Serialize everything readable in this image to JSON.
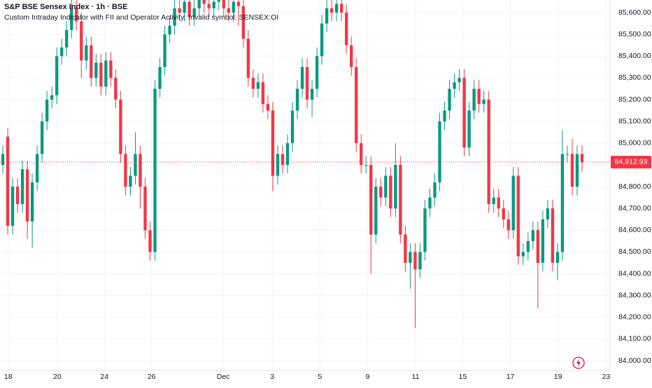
{
  "chart_data": {
    "type": "candlestick",
    "title": "S&P BSE Sensex Index · 1h · BSE",
    "subtitle": "Custom Intraday Indicator with FII and Operator Activity: Invalid symbol: SENSEX:OI",
    "up_color": "#089981",
    "down_color": "#f23645",
    "grid": true,
    "last_price_label": "84,912.93",
    "xlim": [
      -0.57,
      123.7
    ],
    "xticks": [
      {
        "value": 1.1,
        "label": "18"
      },
      {
        "value": 11.1,
        "label": "20"
      },
      {
        "value": 20.7,
        "label": "24"
      },
      {
        "value": 30.3,
        "label": "26"
      },
      {
        "value": 44.9,
        "label": "Dec"
      },
      {
        "value": 54.9,
        "label": "3"
      },
      {
        "value": 64.6,
        "label": "5"
      },
      {
        "value": 74.3,
        "label": "9"
      },
      {
        "value": 84.1,
        "label": "11"
      },
      {
        "value": 93.7,
        "label": "15"
      },
      {
        "value": 103.4,
        "label": "17"
      },
      {
        "value": 113.1,
        "label": "19"
      },
      {
        "value": 122.9,
        "label": "23"
      }
    ],
    "ylim": [
      83955,
      85658
    ],
    "yticks": [
      {
        "value": 84000,
        "label": "84,000.00"
      },
      {
        "value": 84100,
        "label": "84,100.00"
      },
      {
        "value": 84200,
        "label": "84,200.00"
      },
      {
        "value": 84300,
        "label": "84,300.00"
      },
      {
        "value": 84400,
        "label": "84,400.00"
      },
      {
        "value": 84500,
        "label": "84,500.00"
      },
      {
        "value": 84600,
        "label": "84,600.00"
      },
      {
        "value": 84700,
        "label": "84,700.00"
      },
      {
        "value": 84800,
        "label": "84,800.00"
      },
      {
        "value": 84900,
        "label": "84,900.00"
      },
      {
        "value": 85000,
        "label": "85,000.00"
      },
      {
        "value": 85100,
        "label": "85,100.00"
      },
      {
        "value": 85200,
        "label": "85,200.00"
      },
      {
        "value": 85300,
        "label": "85,300.00"
      },
      {
        "value": 85400,
        "label": "85,400.00"
      },
      {
        "value": 85500,
        "label": "85,500.00"
      },
      {
        "value": 85600,
        "label": "85,600.00"
      }
    ],
    "open": [
      84900,
      85030,
      84620,
      84800,
      84720,
      84880,
      84640,
      84820,
      84950,
      85100,
      85200,
      85220,
      85400,
      85440,
      85520,
      85620,
      85560,
      85380,
      85450,
      85300,
      85370,
      85260,
      85380,
      85300,
      85200,
      84950,
      84800,
      84850,
      84950,
      84800,
      84600,
      84500,
      85250,
      85350,
      85500,
      85540,
      85620,
      85600,
      85650,
      85580,
      85620,
      85660,
      85640,
      85620,
      85650,
      85660,
      85620,
      85600,
      85650,
      85630,
      85480,
      85300,
      85250,
      85280,
      85180,
      85150,
      84850,
      84950,
      84900,
      85000,
      85150,
      85250,
      85350,
      85200,
      85250,
      85400,
      85550,
      85620,
      85600,
      85640,
      85600,
      85450,
      85350,
      85000,
      84900,
      84900,
      84580,
      84800,
      84750,
      84850,
      84700,
      84900,
      84580,
      84450,
      84500,
      84420,
      84500,
      84700,
      84750,
      84820,
      85100,
      85150,
      85250,
      85280,
      85300,
      84980,
      85150,
      85250,
      85180,
      85200,
      84720,
      84750,
      84700,
      84650,
      84600,
      84850,
      84480,
      84500,
      84550,
      84600,
      84450,
      84650,
      84700,
      84450,
      84500,
      84950,
      84950,
      84800,
      84950
    ],
    "high": [
      84990,
      85070,
      84840,
      84840,
      84920,
      84920,
      84860,
      84990,
      85140,
      85240,
      85260,
      85440,
      85480,
      85560,
      85660,
      85660,
      85600,
      85490,
      85490,
      85410,
      85410,
      85420,
      85420,
      85340,
      85240,
      84990,
      84890,
      85050,
      84990,
      84840,
      84640,
      85290,
      85390,
      85540,
      85580,
      85660,
      85660,
      85690,
      85690,
      85660,
      85700,
      85700,
      85680,
      85690,
      85700,
      85700,
      85660,
      85690,
      85690,
      85670,
      85520,
      85340,
      85320,
      85320,
      85220,
      85190,
      84990,
      84990,
      85040,
      85190,
      85290,
      85390,
      85390,
      85290,
      85440,
      85590,
      85660,
      85660,
      85680,
      85680,
      85640,
      85490,
      85390,
      85040,
      84940,
      84940,
      84840,
      84840,
      84890,
      84890,
      85000,
      84940,
      84620,
      84540,
      84540,
      84540,
      84740,
      84790,
      84860,
      85140,
      85190,
      85290,
      85320,
      85340,
      85340,
      85190,
      85290,
      85290,
      85240,
      85240,
      84790,
      84790,
      84740,
      84690,
      84890,
      84890,
      84540,
      84590,
      84640,
      84640,
      84690,
      84740,
      84740,
      84540,
      85060,
      84990,
      85020,
      84990,
      84990
    ],
    "low": [
      84860,
      84580,
      84580,
      84680,
      84680,
      84560,
      84520,
      84780,
      84910,
      85060,
      85160,
      85180,
      85360,
      85400,
      85480,
      85520,
      85300,
      85340,
      85260,
      85260,
      85220,
      85220,
      85260,
      85160,
      84910,
      84760,
      84760,
      84810,
      84700,
      84560,
      84460,
      84460,
      85210,
      85310,
      85460,
      85500,
      85560,
      85560,
      85540,
      85540,
      85580,
      85600,
      85580,
      85580,
      85610,
      85580,
      85560,
      85560,
      85540,
      85440,
      85260,
      85210,
      85210,
      85140,
      85110,
      84780,
      84810,
      84860,
      84860,
      84960,
      85110,
      85210,
      85160,
      85120,
      85210,
      85360,
      85510,
      85560,
      85560,
      85560,
      85410,
      85310,
      84960,
      84860,
      84860,
      84400,
      84540,
      84710,
      84710,
      84660,
      84660,
      84540,
      84410,
      84330,
      84150,
      84380,
      84460,
      84660,
      84710,
      84780,
      85060,
      85110,
      85210,
      85240,
      84940,
      84940,
      85110,
      85140,
      85140,
      84680,
      84680,
      84660,
      84610,
      84560,
      84560,
      84440,
      84440,
      84460,
      84510,
      84240,
      84410,
      84610,
      84410,
      84370,
      84460,
      84910,
      84760,
      84760,
      84870
    ],
    "close": [
      84950,
      84620,
      84800,
      84720,
      84880,
      84640,
      84820,
      84950,
      85100,
      85200,
      85220,
      85400,
      85440,
      85520,
      85620,
      85560,
      85380,
      85450,
      85300,
      85370,
      85260,
      85380,
      85300,
      85200,
      84950,
      84800,
      84850,
      84950,
      84800,
      84600,
      84500,
      85250,
      85350,
      85500,
      85540,
      85620,
      85600,
      85650,
      85580,
      85620,
      85660,
      85640,
      85620,
      85650,
      85660,
      85620,
      85600,
      85650,
      85630,
      85480,
      85300,
      85250,
      85280,
      85180,
      85150,
      84850,
      84950,
      84900,
      85000,
      85150,
      85250,
      85350,
      85200,
      85250,
      85400,
      85550,
      85620,
      85600,
      85640,
      85600,
      85450,
      85350,
      85000,
      84900,
      84900,
      84580,
      84800,
      84750,
      84850,
      84700,
      84900,
      84580,
      84450,
      84500,
      84420,
      84500,
      84700,
      84750,
      84820,
      85100,
      85150,
      85250,
      85280,
      85300,
      84980,
      85150,
      85250,
      85180,
      85200,
      84720,
      84750,
      84700,
      84650,
      84600,
      84850,
      84480,
      84500,
      84550,
      84600,
      84450,
      84650,
      84700,
      84450,
      84500,
      84950,
      84950,
      84800,
      84950,
      84912.93
    ]
  }
}
